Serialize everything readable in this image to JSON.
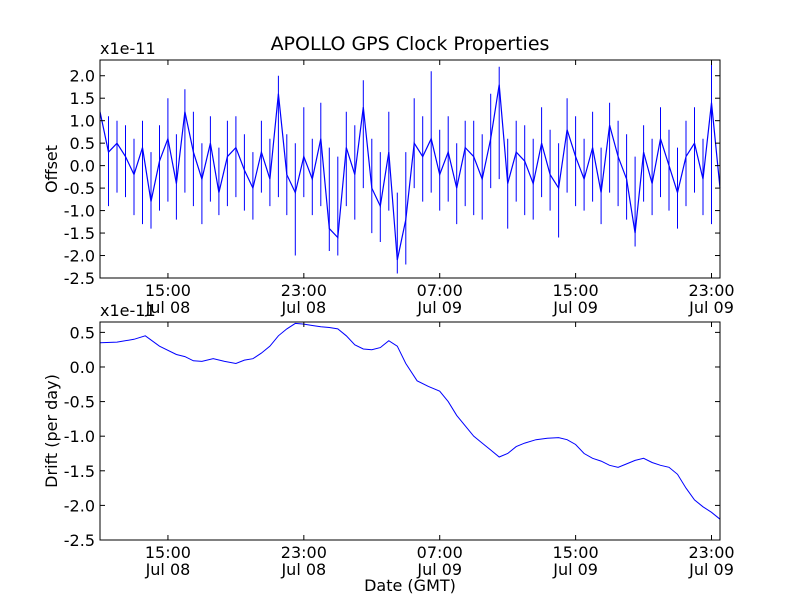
{
  "title": "APOLLO GPS Clock Properties",
  "chart_data": [
    {
      "type": "line",
      "name": "offset-panel",
      "ylabel": "Offset",
      "scale_label": "x1e-11",
      "ylim": [
        -2.5,
        2.35
      ],
      "yticks": [
        "2.0",
        "1.5",
        "1.0",
        "0.5",
        "0.0",
        "-0.5",
        "-1.0",
        "-1.5",
        "-2.0",
        "-2.5"
      ],
      "ytick_values": [
        2.0,
        1.5,
        1.0,
        0.5,
        0.0,
        -0.5,
        -1.0,
        -1.5,
        -2.0,
        -2.5
      ],
      "xlim": [
        "2008-07-08 11:00",
        "2008-07-09 23:30"
      ],
      "xticks": [
        {
          "time": "15:00",
          "date": "Jul 08",
          "at": "2008-07-08 15:00"
        },
        {
          "time": "23:00",
          "date": "Jul 08",
          "at": "2008-07-08 23:00"
        },
        {
          "time": "07:00",
          "date": "Jul 09",
          "at": "2008-07-09 07:00"
        },
        {
          "time": "15:00",
          "date": "Jul 09",
          "at": "2008-07-09 15:00"
        },
        {
          "time": "23:00",
          "date": "Jul 09",
          "at": "2008-07-09 23:00"
        }
      ],
      "color": "#0000ff",
      "series": {
        "x": [
          "2008-07-08 11:00",
          "2008-07-08 11:30",
          "2008-07-08 12:00",
          "2008-07-08 12:30",
          "2008-07-08 13:00",
          "2008-07-08 13:30",
          "2008-07-08 14:00",
          "2008-07-08 14:30",
          "2008-07-08 15:00",
          "2008-07-08 15:30",
          "2008-07-08 16:00",
          "2008-07-08 16:30",
          "2008-07-08 17:00",
          "2008-07-08 17:30",
          "2008-07-08 18:00",
          "2008-07-08 18:30",
          "2008-07-08 19:00",
          "2008-07-08 19:30",
          "2008-07-08 20:00",
          "2008-07-08 20:30",
          "2008-07-08 21:00",
          "2008-07-08 21:30",
          "2008-07-08 22:00",
          "2008-07-08 22:30",
          "2008-07-08 23:00",
          "2008-07-08 23:30",
          "2008-07-09 00:00",
          "2008-07-09 00:30",
          "2008-07-09 01:00",
          "2008-07-09 01:30",
          "2008-07-09 02:00",
          "2008-07-09 02:30",
          "2008-07-09 03:00",
          "2008-07-09 03:30",
          "2008-07-09 04:00",
          "2008-07-09 04:30",
          "2008-07-09 05:00",
          "2008-07-09 05:30",
          "2008-07-09 06:00",
          "2008-07-09 06:30",
          "2008-07-09 07:00",
          "2008-07-09 07:30",
          "2008-07-09 08:00",
          "2008-07-09 08:30",
          "2008-07-09 09:00",
          "2008-07-09 09:30",
          "2008-07-09 10:00",
          "2008-07-09 10:30",
          "2008-07-09 11:00",
          "2008-07-09 11:30",
          "2008-07-09 12:00",
          "2008-07-09 12:30",
          "2008-07-09 13:00",
          "2008-07-09 13:30",
          "2008-07-09 14:00",
          "2008-07-09 14:30",
          "2008-07-09 15:00",
          "2008-07-09 15:30",
          "2008-07-09 16:00",
          "2008-07-09 16:30",
          "2008-07-09 17:00",
          "2008-07-09 17:30",
          "2008-07-09 18:00",
          "2008-07-09 18:30",
          "2008-07-09 19:00",
          "2008-07-09 19:30",
          "2008-07-09 20:00",
          "2008-07-09 20:30",
          "2008-07-09 21:00",
          "2008-07-09 21:30",
          "2008-07-09 22:00",
          "2008-07-09 22:30",
          "2008-07-09 23:00",
          "2008-07-09 23:30"
        ],
        "y": [
          1.2,
          0.3,
          0.5,
          0.2,
          -0.2,
          0.4,
          -0.8,
          0.1,
          0.6,
          -0.4,
          1.2,
          0.3,
          -0.3,
          0.5,
          -0.6,
          0.2,
          0.4,
          -0.1,
          -0.5,
          0.3,
          -0.3,
          1.6,
          -0.2,
          -0.6,
          0.2,
          -0.3,
          0.6,
          -1.4,
          -1.6,
          0.4,
          -0.2,
          1.3,
          -0.5,
          -0.9,
          0.3,
          -2.1,
          -1.2,
          0.5,
          0.2,
          0.6,
          -0.2,
          0.3,
          -0.5,
          0.4,
          0.2,
          -0.3,
          0.6,
          1.8,
          -0.4,
          0.3,
          0.1,
          -0.4,
          0.5,
          -0.2,
          -0.5,
          0.8,
          0.2,
          -0.3,
          0.4,
          -0.6,
          0.9,
          0.2,
          -0.3,
          -1.5,
          0.3,
          -0.4,
          0.6,
          0.0,
          -0.6,
          0.2,
          0.5,
          -0.3,
          1.4,
          -0.5
        ],
        "range": {
          "x": [
            "2008-07-08 11:00",
            "2008-07-08 11:30",
            "2008-07-08 12:00",
            "2008-07-08 12:30",
            "2008-07-08 13:00",
            "2008-07-08 13:30",
            "2008-07-08 14:00",
            "2008-07-08 14:30",
            "2008-07-08 15:00",
            "2008-07-08 15:30",
            "2008-07-08 16:00",
            "2008-07-08 16:30",
            "2008-07-08 17:00",
            "2008-07-08 17:30",
            "2008-07-08 18:00",
            "2008-07-08 18:30",
            "2008-07-08 19:00",
            "2008-07-08 19:30",
            "2008-07-08 20:00",
            "2008-07-08 20:30",
            "2008-07-08 21:00",
            "2008-07-08 21:30",
            "2008-07-08 22:00",
            "2008-07-08 22:30",
            "2008-07-08 23:00",
            "2008-07-08 23:30",
            "2008-07-09 00:00",
            "2008-07-09 00:30",
            "2008-07-09 01:00",
            "2008-07-09 01:30",
            "2008-07-09 02:00",
            "2008-07-09 02:30",
            "2008-07-09 03:00",
            "2008-07-09 03:30",
            "2008-07-09 04:00",
            "2008-07-09 04:30",
            "2008-07-09 05:00",
            "2008-07-09 05:30",
            "2008-07-09 06:00",
            "2008-07-09 06:30",
            "2008-07-09 07:00",
            "2008-07-09 07:30",
            "2008-07-09 08:00",
            "2008-07-09 08:30",
            "2008-07-09 09:00",
            "2008-07-09 09:30",
            "2008-07-09 10:00",
            "2008-07-09 10:30",
            "2008-07-09 11:00",
            "2008-07-09 11:30",
            "2008-07-09 12:00",
            "2008-07-09 12:30",
            "2008-07-09 13:00",
            "2008-07-09 13:30",
            "2008-07-09 14:00",
            "2008-07-09 14:30",
            "2008-07-09 15:00",
            "2008-07-09 15:30",
            "2008-07-09 16:00",
            "2008-07-09 16:30",
            "2008-07-09 17:00",
            "2008-07-09 17:30",
            "2008-07-09 18:00",
            "2008-07-09 18:30",
            "2008-07-09 19:00",
            "2008-07-09 19:30",
            "2008-07-09 20:00",
            "2008-07-09 20:30",
            "2008-07-09 21:00",
            "2008-07-09 21:30",
            "2008-07-09 22:00",
            "2008-07-09 22:30",
            "2008-07-09 23:00",
            "2008-07-09 23:30"
          ],
          "min": [
            -0.6,
            -0.9,
            -0.6,
            -0.7,
            -1.1,
            -1.3,
            -1.4,
            -1.0,
            -0.8,
            -1.2,
            -0.6,
            -0.9,
            -1.3,
            -0.8,
            -1.1,
            -0.9,
            -0.7,
            -1.0,
            -1.2,
            -0.6,
            -0.9,
            -0.7,
            -1.1,
            -2.0,
            -0.7,
            -1.1,
            -0.9,
            -1.9,
            -2.0,
            -0.9,
            -1.2,
            -0.5,
            -1.5,
            -1.7,
            -1.0,
            -2.4,
            -2.2,
            -0.5,
            -0.8,
            -0.6,
            -1.0,
            -0.8,
            -1.3,
            -0.9,
            -1.1,
            -1.2,
            -0.5,
            -0.3,
            -1.4,
            -0.8,
            -1.1,
            -1.2,
            -0.7,
            -1.0,
            -1.6,
            -0.6,
            -0.9,
            -1.0,
            -0.8,
            -1.3,
            -0.6,
            -0.9,
            -1.2,
            -1.8,
            -0.8,
            -1.1,
            -0.7,
            -1.0,
            -1.4,
            -0.9,
            -0.6,
            -1.1,
            -1.3,
            -1.5
          ],
          "max": [
            1.9,
            1.1,
            1.0,
            0.9,
            0.6,
            1.0,
            0.3,
            0.9,
            1.5,
            0.7,
            1.7,
            1.2,
            0.5,
            1.1,
            0.4,
            1.0,
            1.1,
            0.7,
            0.3,
            1.0,
            0.6,
            2.0,
            0.7,
            0.5,
            1.3,
            0.6,
            1.4,
            0.4,
            0.2,
            1.2,
            0.9,
            1.9,
            0.6,
            0.3,
            1.2,
            -0.6,
            0.3,
            1.5,
            1.1,
            2.1,
            0.8,
            1.1,
            0.5,
            1.0,
            1.0,
            0.7,
            1.6,
            2.2,
            0.6,
            1.0,
            0.9,
            0.6,
            1.3,
            0.8,
            0.5,
            1.5,
            1.1,
            0.6,
            1.2,
            0.4,
            1.4,
            1.0,
            0.7,
            0.2,
            0.9,
            0.6,
            1.3,
            0.8,
            0.4,
            1.0,
            1.3,
            0.6,
            2.3,
            0.4
          ]
        }
      }
    },
    {
      "type": "line",
      "name": "drift-panel",
      "ylabel": "Drift (per day)",
      "xlabel": "Date (GMT)",
      "scale_label": "x1e-11",
      "ylim": [
        -2.5,
        0.65
      ],
      "yticks": [
        "0.5",
        "0.0",
        "-0.5",
        "-1.0",
        "-1.5",
        "-2.0",
        "-2.5"
      ],
      "ytick_values": [
        0.5,
        0.0,
        -0.5,
        -1.0,
        -1.5,
        -2.0,
        -2.5
      ],
      "xlim": [
        "2008-07-08 11:00",
        "2008-07-09 23:30"
      ],
      "xticks": [
        {
          "time": "15:00",
          "date": "Jul 08",
          "at": "2008-07-08 15:00"
        },
        {
          "time": "23:00",
          "date": "Jul 08",
          "at": "2008-07-08 23:00"
        },
        {
          "time": "07:00",
          "date": "Jul 09",
          "at": "2008-07-09 07:00"
        },
        {
          "time": "15:00",
          "date": "Jul 09",
          "at": "2008-07-09 15:00"
        },
        {
          "time": "23:00",
          "date": "Jul 09",
          "at": "2008-07-09 23:00"
        }
      ],
      "color": "#0000ff",
      "series": {
        "x": [
          "2008-07-08 11:00",
          "2008-07-08 12:00",
          "2008-07-08 13:00",
          "2008-07-08 13:40",
          "2008-07-08 14:30",
          "2008-07-08 15:30",
          "2008-07-08 16:00",
          "2008-07-08 16:30",
          "2008-07-08 17:00",
          "2008-07-08 17:40",
          "2008-07-08 18:20",
          "2008-07-08 19:00",
          "2008-07-08 19:30",
          "2008-07-08 20:00",
          "2008-07-08 20:30",
          "2008-07-08 21:00",
          "2008-07-08 21:30",
          "2008-07-08 22:00",
          "2008-07-08 22:30",
          "2008-07-08 23:00",
          "2008-07-08 23:30",
          "2008-07-09 00:00",
          "2008-07-09 00:30",
          "2008-07-09 01:00",
          "2008-07-09 01:30",
          "2008-07-09 02:00",
          "2008-07-09 02:30",
          "2008-07-09 03:00",
          "2008-07-09 03:30",
          "2008-07-09 04:00",
          "2008-07-09 04:30",
          "2008-07-09 05:00",
          "2008-07-09 05:40",
          "2008-07-09 06:20",
          "2008-07-09 07:00",
          "2008-07-09 07:30",
          "2008-07-09 08:00",
          "2008-07-09 08:30",
          "2008-07-09 09:00",
          "2008-07-09 09:30",
          "2008-07-09 10:00",
          "2008-07-09 10:30",
          "2008-07-09 11:00",
          "2008-07-09 11:30",
          "2008-07-09 12:00",
          "2008-07-09 12:40",
          "2008-07-09 13:20",
          "2008-07-09 14:00",
          "2008-07-09 14:30",
          "2008-07-09 15:00",
          "2008-07-09 15:30",
          "2008-07-09 16:00",
          "2008-07-09 16:30",
          "2008-07-09 17:00",
          "2008-07-09 17:30",
          "2008-07-09 18:00",
          "2008-07-09 18:30",
          "2008-07-09 19:00",
          "2008-07-09 19:30",
          "2008-07-09 20:00",
          "2008-07-09 20:30",
          "2008-07-09 21:00",
          "2008-07-09 21:30",
          "2008-07-09 22:00",
          "2008-07-09 22:30",
          "2008-07-09 23:00",
          "2008-07-09 23:30"
        ],
        "y": [
          0.35,
          0.36,
          0.4,
          0.45,
          0.3,
          0.18,
          0.15,
          0.09,
          0.08,
          0.12,
          0.08,
          0.05,
          0.1,
          0.12,
          0.2,
          0.3,
          0.45,
          0.55,
          0.63,
          0.62,
          0.6,
          0.58,
          0.57,
          0.55,
          0.45,
          0.32,
          0.26,
          0.25,
          0.28,
          0.38,
          0.3,
          0.05,
          -0.2,
          -0.28,
          -0.35,
          -0.5,
          -0.7,
          -0.85,
          -1.0,
          -1.1,
          -1.2,
          -1.3,
          -1.25,
          -1.15,
          -1.1,
          -1.05,
          -1.03,
          -1.02,
          -1.05,
          -1.12,
          -1.25,
          -1.32,
          -1.36,
          -1.42,
          -1.45,
          -1.4,
          -1.35,
          -1.32,
          -1.38,
          -1.42,
          -1.45,
          -1.55,
          -1.75,
          -1.92,
          -2.02,
          -2.1,
          -2.2
        ]
      }
    }
  ]
}
